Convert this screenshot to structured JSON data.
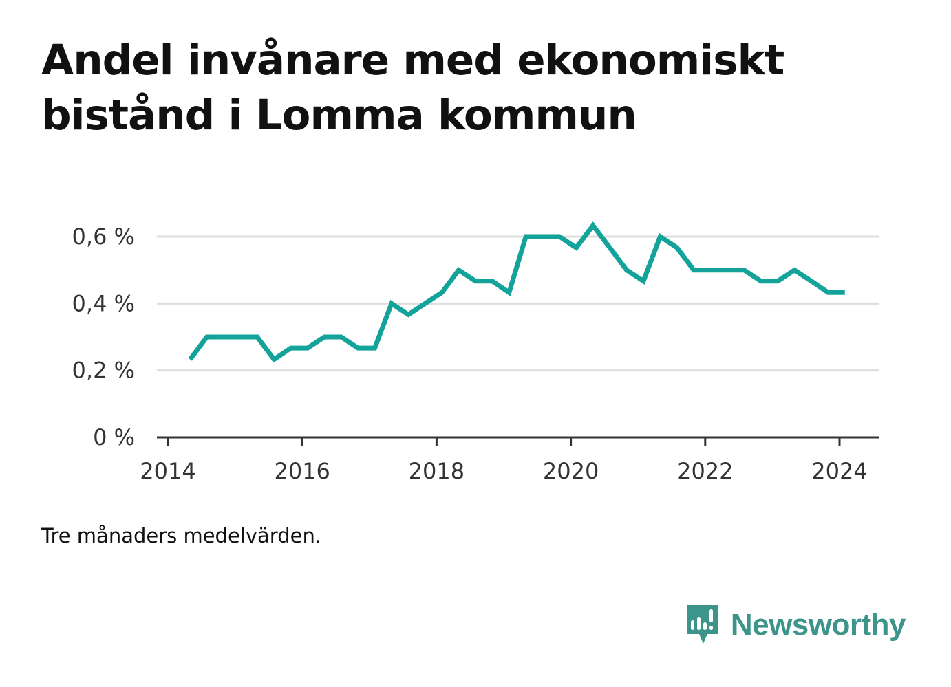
{
  "title": "Andel invånare med ekonomiskt bistånd i Lomma kommun",
  "note": "Tre månaders medelvärden.",
  "brand": {
    "name": "Newsworthy",
    "icon": "newsworthy-logo-icon",
    "color": "#3c948b"
  },
  "chart_data": {
    "type": "line",
    "title": "Andel invånare med ekonomiskt bistånd i Lomma kommun",
    "xlabel": "",
    "ylabel": "",
    "x_ticks": [
      2014,
      2016,
      2018,
      2020,
      2022,
      2024
    ],
    "y_ticks": [
      {
        "value": 0,
        "label": "0 %"
      },
      {
        "value": 0.2,
        "label": "0,2 %"
      },
      {
        "value": 0.4,
        "label": "0,4 %"
      },
      {
        "value": 0.6,
        "label": "0,6 %"
      }
    ],
    "xlim": [
      2014,
      2024.6
    ],
    "ylim": [
      0,
      0.6
    ],
    "grid": true,
    "line_color": "#14a39a",
    "series": [
      {
        "name": "",
        "x": [
          2014.33,
          2014.58,
          2014.83,
          2015.08,
          2015.33,
          2015.58,
          2015.83,
          2016.08,
          2016.33,
          2016.58,
          2016.83,
          2017.08,
          2017.33,
          2017.58,
          2017.83,
          2018.08,
          2018.33,
          2018.58,
          2018.83,
          2019.08,
          2019.33,
          2019.58,
          2019.83,
          2020.08,
          2020.33,
          2020.58,
          2020.83,
          2021.08,
          2021.33,
          2021.58,
          2021.83,
          2022.08,
          2022.33,
          2022.58,
          2022.83,
          2023.08,
          2023.33,
          2023.58,
          2023.83,
          2024.08
        ],
        "values": [
          0.233,
          0.3,
          0.3,
          0.3,
          0.3,
          0.233,
          0.267,
          0.267,
          0.3,
          0.3,
          0.267,
          0.267,
          0.4,
          0.367,
          0.4,
          0.433,
          0.5,
          0.467,
          0.467,
          0.433,
          0.6,
          0.6,
          0.6,
          0.567,
          0.633,
          0.567,
          0.5,
          0.467,
          0.6,
          0.567,
          0.5,
          0.5,
          0.5,
          0.5,
          0.467,
          0.467,
          0.5,
          0.467,
          0.433,
          0.433
        ]
      }
    ]
  }
}
